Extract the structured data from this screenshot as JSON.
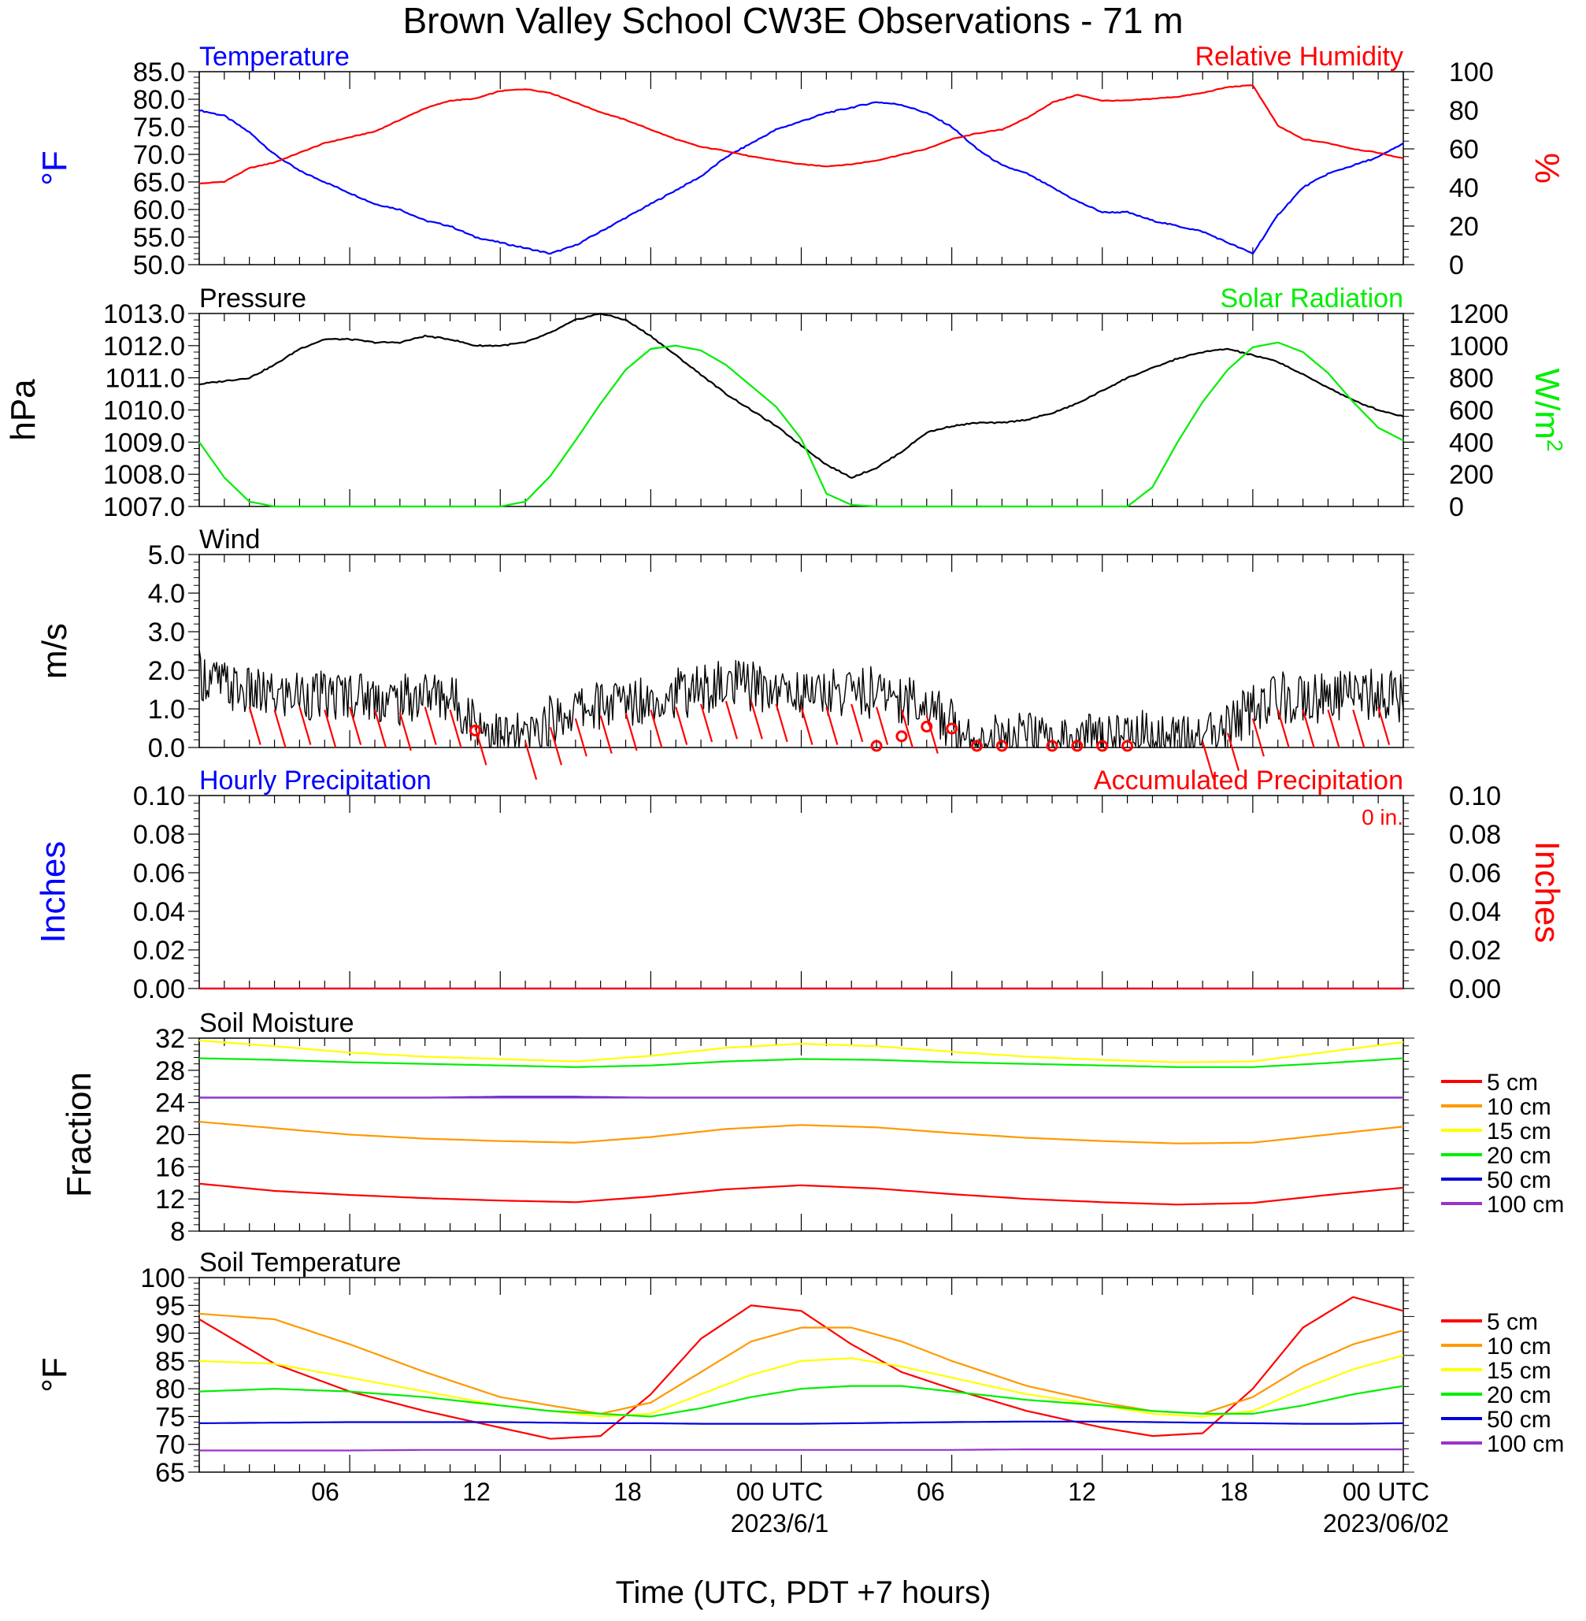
{
  "title": "Brown Valley School CW3E Observations - 71 m",
  "time_axis": {
    "tick_labels": [
      "06",
      "12",
      "18",
      "00 UTC",
      "06",
      "12",
      "18",
      "00 UTC"
    ],
    "date_labels": [
      "2023/6/1",
      "2023/06/02"
    ],
    "xlabel": "Time (UTC, PDT +7 hours)"
  },
  "colors": {
    "blue": "#0000ff",
    "red": "#ff0000",
    "green": "#00ee00",
    "black": "#000000",
    "orange": "#ff9900",
    "yellow": "#ffff00",
    "purple": "#9933cc",
    "navy": "#0000dd"
  },
  "chart_data": [
    {
      "type": "line",
      "panel": "temperature-humidity",
      "left_title": "Temperature",
      "right_title": "Relative Humidity",
      "ylabel_left": "°F",
      "ylabel_right": "%",
      "ylim_left": [
        50,
        85
      ],
      "ylim_right": [
        0,
        100
      ],
      "yticks_left": [
        "85.0",
        "80.0",
        "75.0",
        "70.0",
        "65.0",
        "60.0",
        "55.0",
        "50.0"
      ],
      "yticks_right": [
        "100",
        "80",
        "60",
        "40",
        "20",
        "0"
      ],
      "x_hours": [
        0,
        1,
        2,
        3,
        4,
        5,
        6,
        7,
        8,
        9,
        10,
        11,
        12,
        13,
        14,
        15,
        16,
        17,
        18,
        19,
        20,
        21,
        22,
        23,
        24,
        25,
        26,
        27,
        28,
        29,
        30,
        31,
        32,
        33,
        34,
        35,
        36,
        37,
        38,
        39,
        40,
        41,
        42,
        43,
        44,
        45,
        46,
        47,
        48
      ],
      "series": [
        {
          "name": "Temperature",
          "axis": "left",
          "color": "#0000ff",
          "values": [
            78,
            77,
            74,
            70,
            67,
            65,
            63,
            61,
            60,
            58,
            57,
            55,
            54,
            53,
            52,
            53.5,
            56,
            58.5,
            61,
            63.5,
            66,
            69.5,
            72,
            74.5,
            76,
            77.5,
            78.5,
            79.5,
            79,
            77.5,
            75,
            71,
            68,
            66.5,
            64,
            61.5,
            59.5,
            59.5,
            58,
            57,
            56,
            54,
            52,
            59,
            64,
            66.5,
            68,
            69.5,
            72
          ]
        },
        {
          "name": "Relative Humidity",
          "axis": "right",
          "color": "#ff0000",
          "values": [
            42,
            43,
            50,
            53,
            58,
            63,
            66,
            69,
            75,
            81,
            85,
            86,
            90,
            91,
            89,
            84,
            79,
            75,
            70,
            65,
            61,
            59,
            56,
            54,
            52,
            51,
            52,
            54,
            57,
            60,
            65,
            68,
            70,
            76,
            84,
            88,
            85,
            85,
            86,
            87,
            89,
            92,
            93,
            72,
            65,
            63,
            60,
            58,
            55
          ]
        }
      ]
    },
    {
      "type": "line",
      "panel": "pressure-solar",
      "left_title": "Pressure",
      "right_title": "Solar Radiation",
      "ylabel_left": "hPa",
      "ylabel_right": "W/m",
      "ylabel_right_sup": "2",
      "ylim_left": [
        1007,
        1013
      ],
      "ylim_right": [
        0,
        1200
      ],
      "yticks_left": [
        "1013.0",
        "1012.0",
        "1011.0",
        "1010.0",
        "1009.0",
        "1008.0",
        "1007.0"
      ],
      "yticks_right": [
        "1200",
        "1000",
        "800",
        "600",
        "400",
        "200",
        "0"
      ],
      "x_hours": [
        0,
        1,
        2,
        3,
        4,
        5,
        6,
        7,
        8,
        9,
        10,
        11,
        12,
        13,
        14,
        15,
        16,
        17,
        18,
        19,
        20,
        21,
        22,
        23,
        24,
        25,
        26,
        27,
        28,
        29,
        30,
        31,
        32,
        33,
        34,
        35,
        36,
        37,
        38,
        39,
        40,
        41,
        42,
        43,
        44,
        45,
        46,
        47,
        48
      ],
      "series": [
        {
          "name": "Pressure",
          "axis": "left",
          "color": "#000000",
          "values": [
            1010.8,
            1010.9,
            1011.0,
            1011.4,
            1011.9,
            1012.2,
            1012.2,
            1012.1,
            1012.1,
            1012.3,
            1012.2,
            1012.0,
            1012.0,
            1012.1,
            1012.4,
            1012.8,
            1013.0,
            1012.8,
            1012.3,
            1011.7,
            1011.1,
            1010.5,
            1010.0,
            1009.5,
            1008.9,
            1008.3,
            1007.9,
            1008.2,
            1008.7,
            1009.3,
            1009.5,
            1009.6,
            1009.6,
            1009.7,
            1009.9,
            1010.2,
            1010.6,
            1011.0,
            1011.3,
            1011.6,
            1011.8,
            1011.9,
            1011.7,
            1011.5,
            1011.1,
            1010.7,
            1010.3,
            1010.0,
            1009.8
          ]
        },
        {
          "name": "Solar Radiation",
          "axis": "right",
          "color": "#00ee00",
          "values": [
            400,
            180,
            30,
            0,
            0,
            0,
            0,
            0,
            0,
            0,
            0,
            0,
            0,
            30,
            190,
            410,
            640,
            850,
            980,
            1000,
            970,
            880,
            750,
            620,
            420,
            80,
            10,
            0,
            0,
            0,
            0,
            0,
            0,
            0,
            0,
            0,
            0,
            0,
            120,
            400,
            650,
            850,
            990,
            1020,
            960,
            830,
            650,
            490,
            410
          ]
        }
      ]
    },
    {
      "type": "line",
      "panel": "wind",
      "left_title": "Wind",
      "ylabel_left": "m/s",
      "ylim_left": [
        0,
        5
      ],
      "yticks_left": [
        "5.0",
        "4.0",
        "3.0",
        "2.0",
        "1.0",
        "0.0"
      ],
      "x_hours": [
        0,
        1,
        2,
        3,
        4,
        5,
        6,
        7,
        8,
        9,
        10,
        11,
        12,
        13,
        14,
        15,
        16,
        17,
        18,
        19,
        20,
        21,
        22,
        23,
        24,
        25,
        26,
        27,
        28,
        29,
        30,
        31,
        32,
        33,
        34,
        35,
        36,
        37,
        38,
        39,
        40,
        41,
        42,
        43,
        44,
        45,
        46,
        47,
        48
      ],
      "series": [
        {
          "name": "Wind Speed",
          "axis": "left",
          "color": "#000000",
          "values": [
            1.9,
            1.6,
            1.4,
            1.3,
            1.4,
            1.3,
            1.4,
            1.3,
            1.2,
            1.4,
            1.3,
            0.7,
            0.3,
            0.2,
            0.7,
            1.0,
            1.1,
            1.2,
            1.3,
            1.4,
            1.5,
            1.6,
            1.6,
            1.5,
            1.4,
            1.4,
            1.5,
            1.4,
            1.3,
            1.1,
            0.6,
            0.3,
            0.2,
            0.3,
            0.1,
            0.2,
            0.4,
            0.3,
            0.4,
            0.2,
            0.2,
            0.5,
            1.0,
            1.3,
            1.3,
            1.3,
            1.3,
            1.4,
            1.3
          ]
        }
      ],
      "wind_barbs_hours": [
        2,
        3,
        4,
        5,
        6,
        7,
        8,
        9,
        10,
        11,
        13,
        14,
        15,
        16,
        17,
        18,
        19,
        20,
        21,
        22,
        23,
        24,
        25,
        26,
        27,
        28,
        29,
        40,
        41,
        42,
        43,
        44,
        45,
        46,
        47
      ],
      "calm_circles": [
        {
          "x": 11,
          "y": 0.4
        },
        {
          "x": 27,
          "y": 0.0
        },
        {
          "x": 28,
          "y": 0.25
        },
        {
          "x": 29,
          "y": 0.5
        },
        {
          "x": 30,
          "y": 0.45
        },
        {
          "x": 31,
          "y": 0.0
        },
        {
          "x": 32,
          "y": 0.0
        },
        {
          "x": 34,
          "y": 0.0
        },
        {
          "x": 35,
          "y": 0.0
        },
        {
          "x": 36,
          "y": 0.0
        },
        {
          "x": 37,
          "y": 0.0
        }
      ]
    },
    {
      "type": "line",
      "panel": "precipitation",
      "left_title": "Hourly Precipitation",
      "right_title": "Accumulated Precipitation",
      "annotation": "0 in.",
      "ylabel_left": "Inches",
      "ylabel_right": "Inches",
      "ylim_left": [
        0,
        0.1
      ],
      "ylim_right": [
        0,
        0.1
      ],
      "yticks_left": [
        "0.10",
        "0.08",
        "0.06",
        "0.04",
        "0.02",
        "0.00"
      ],
      "yticks_right": [
        "0.10",
        "0.08",
        "0.06",
        "0.04",
        "0.02",
        "0.00"
      ],
      "x_hours": [
        0,
        48
      ],
      "series": [
        {
          "name": "Hourly Precipitation",
          "axis": "left",
          "color": "#0000ff",
          "values": [
            0,
            0
          ]
        },
        {
          "name": "Accumulated Precipitation",
          "axis": "right",
          "color": "#ff0000",
          "values": [
            0,
            0
          ]
        }
      ]
    },
    {
      "type": "line",
      "panel": "soil-moisture",
      "left_title": "Soil Moisture",
      "ylabel_left": "Fraction",
      "ylim_left": [
        8,
        32
      ],
      "yticks_left": [
        "32",
        "28",
        "24",
        "20",
        "16",
        "12",
        "8"
      ],
      "legend": [
        "5 cm",
        "10 cm",
        "15 cm",
        "20 cm",
        "50 cm",
        "100 cm"
      ],
      "x_hours": [
        0,
        3,
        6,
        9,
        12,
        15,
        18,
        21,
        24,
        27,
        30,
        33,
        36,
        39,
        42,
        45,
        48
      ],
      "series": [
        {
          "name": "5 cm",
          "color": "#ff0000",
          "values": [
            13.9,
            13.0,
            12.5,
            12.1,
            11.8,
            11.6,
            12.3,
            13.2,
            13.7,
            13.3,
            12.6,
            12.0,
            11.6,
            11.3,
            11.5,
            12.5,
            13.4
          ]
        },
        {
          "name": "10 cm",
          "color": "#ff9900",
          "values": [
            21.6,
            20.8,
            20.0,
            19.5,
            19.2,
            19.0,
            19.7,
            20.7,
            21.2,
            20.9,
            20.2,
            19.6,
            19.2,
            18.9,
            19.0,
            20.0,
            21.0
          ]
        },
        {
          "name": "15 cm",
          "color": "#ffff00",
          "values": [
            31.7,
            31.0,
            30.2,
            29.7,
            29.4,
            29.1,
            29.8,
            30.8,
            31.3,
            31.0,
            30.3,
            29.7,
            29.3,
            29.0,
            29.1,
            30.3,
            31.5
          ]
        },
        {
          "name": "20 cm",
          "color": "#00ee00",
          "values": [
            29.5,
            29.3,
            29.0,
            28.8,
            28.6,
            28.4,
            28.6,
            29.1,
            29.4,
            29.3,
            29.0,
            28.8,
            28.6,
            28.4,
            28.4,
            28.9,
            29.5
          ]
        },
        {
          "name": "50 cm",
          "color": "#0000dd",
          "values": [
            24.6,
            24.6,
            24.6,
            24.6,
            24.7,
            24.7,
            24.6,
            24.6,
            24.6,
            24.6,
            24.6,
            24.6,
            24.6,
            24.6,
            24.6,
            24.6,
            24.6
          ]
        },
        {
          "name": "100 cm",
          "color": "#9933cc",
          "values": [
            24.6,
            24.6,
            24.6,
            24.6,
            24.6,
            24.6,
            24.6,
            24.6,
            24.6,
            24.6,
            24.6,
            24.6,
            24.6,
            24.6,
            24.6,
            24.6,
            24.6
          ]
        }
      ]
    },
    {
      "type": "line",
      "panel": "soil-temperature",
      "left_title": "Soil Temperature",
      "ylabel_left": "°F",
      "ylim_left": [
        65,
        100
      ],
      "yticks_left": [
        "100",
        "95",
        "90",
        "85",
        "80",
        "75",
        "70",
        "65"
      ],
      "legend": [
        "5 cm",
        "10 cm",
        "15 cm",
        "20 cm",
        "50 cm",
        "100 cm"
      ],
      "x_hours": [
        0,
        3,
        6,
        9,
        12,
        14,
        16,
        18,
        20,
        22,
        24,
        26,
        28,
        30,
        33,
        36,
        38,
        40,
        42,
        44,
        46,
        48
      ],
      "series": [
        {
          "name": "5 cm",
          "color": "#ff0000",
          "values": [
            92.5,
            84.5,
            79.5,
            76.0,
            73.0,
            71.0,
            71.5,
            79.0,
            89.0,
            95.0,
            94.0,
            88.0,
            83.0,
            80.0,
            76.0,
            73.0,
            71.5,
            72.0,
            80.0,
            91.0,
            96.5,
            94.0
          ]
        },
        {
          "name": "10 cm",
          "color": "#ff9900",
          "values": [
            93.5,
            92.5,
            88.0,
            83.0,
            78.5,
            77.0,
            75.5,
            77.5,
            83.0,
            88.5,
            91.0,
            91.0,
            88.5,
            85.0,
            80.5,
            77.5,
            76.0,
            75.5,
            78.5,
            84.0,
            88.0,
            90.5
          ]
        },
        {
          "name": "15 cm",
          "color": "#ffff00",
          "values": [
            85.0,
            84.5,
            82.0,
            79.5,
            77.0,
            76.0,
            75.0,
            75.5,
            79.0,
            82.5,
            85.0,
            85.5,
            84.0,
            82.0,
            79.0,
            77.0,
            75.5,
            75.0,
            76.0,
            80.0,
            83.5,
            86.0
          ]
        },
        {
          "name": "20 cm",
          "color": "#00ee00",
          "values": [
            79.5,
            80.0,
            79.5,
            78.5,
            77.0,
            76.0,
            75.5,
            75.0,
            76.5,
            78.5,
            80.0,
            80.5,
            80.5,
            79.5,
            78.0,
            77.0,
            76.0,
            75.5,
            75.5,
            77.0,
            79.0,
            80.5
          ]
        },
        {
          "name": "50 cm",
          "color": "#0000dd",
          "values": [
            73.8,
            73.9,
            74.0,
            74.0,
            74.0,
            73.9,
            73.8,
            73.8,
            73.7,
            73.7,
            73.7,
            73.8,
            73.9,
            74.0,
            74.1,
            74.1,
            74.0,
            73.9,
            73.8,
            73.7,
            73.7,
            73.8
          ]
        },
        {
          "name": "100 cm",
          "color": "#9933cc",
          "values": [
            68.9,
            68.9,
            68.9,
            69.0,
            69.0,
            69.0,
            69.0,
            69.0,
            69.0,
            69.0,
            69.0,
            69.0,
            69.0,
            69.0,
            69.1,
            69.1,
            69.1,
            69.1,
            69.1,
            69.1,
            69.1,
            69.1
          ]
        }
      ]
    }
  ]
}
